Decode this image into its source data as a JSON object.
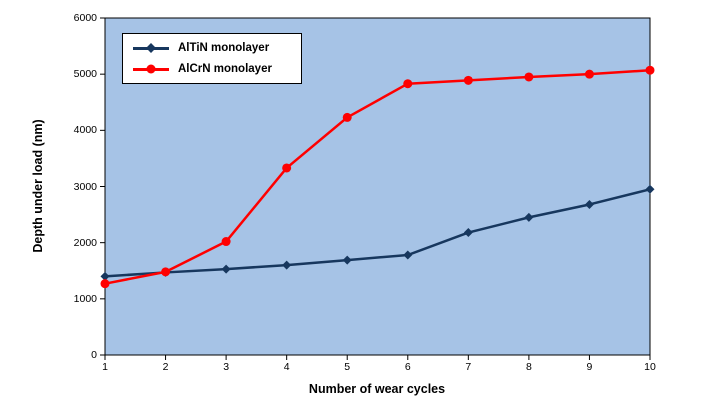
{
  "chart_data": {
    "type": "line",
    "title": "",
    "xlabel": "Number of wear cycles",
    "ylabel": "Depth under load (nm)",
    "x": [
      1,
      2,
      3,
      4,
      5,
      6,
      7,
      8,
      9,
      10
    ],
    "yticks": [
      0,
      1000,
      2000,
      3000,
      4000,
      5000,
      6000
    ],
    "ylim": [
      0,
      6000
    ],
    "grid": false,
    "legend_position": "top-left-inside",
    "plot_bg": "#A6C3E6",
    "axis_color": "#000000",
    "series": [
      {
        "name": "AlTiN monolayer",
        "color": "#17375E",
        "marker": "diamond",
        "values": [
          1400,
          1470,
          1530,
          1600,
          1690,
          1780,
          2180,
          2450,
          2680,
          2950
        ]
      },
      {
        "name": "AlCrN monolayer",
        "color": "#FF0000",
        "marker": "circle",
        "values": [
          1270,
          1480,
          2020,
          3330,
          4230,
          4830,
          4890,
          4950,
          5000,
          5070
        ]
      }
    ]
  }
}
